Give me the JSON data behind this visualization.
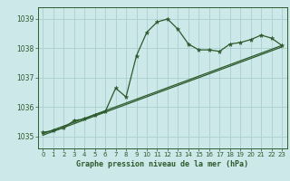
{
  "title": "Graphe pression niveau de la mer (hPa)",
  "background_color": "#cce8e8",
  "grid_color": "#aacfcf",
  "line_color": "#2d5a2d",
  "xlim": [
    -0.5,
    23.5
  ],
  "ylim": [
    1034.6,
    1039.4
  ],
  "yticks": [
    1035,
    1036,
    1037,
    1038,
    1039
  ],
  "xticks": [
    0,
    1,
    2,
    3,
    4,
    5,
    6,
    7,
    8,
    9,
    10,
    11,
    12,
    13,
    14,
    15,
    16,
    17,
    18,
    19,
    20,
    21,
    22,
    23
  ],
  "series1_x": [
    0,
    1,
    2,
    3,
    4,
    5,
    6,
    7,
    8,
    9,
    10,
    11,
    12,
    13,
    14,
    15,
    16,
    17,
    18,
    19,
    20,
    21,
    22,
    23
  ],
  "series1_y": [
    1035.15,
    1035.2,
    1035.3,
    1035.55,
    1035.6,
    1035.75,
    1035.85,
    1036.65,
    1036.35,
    1037.75,
    1038.55,
    1038.9,
    1039.0,
    1038.65,
    1038.15,
    1037.95,
    1037.95,
    1037.9,
    1038.15,
    1038.2,
    1038.3,
    1038.45,
    1038.35,
    1038.1
  ],
  "series2_x": [
    0,
    23
  ],
  "series2_y": [
    1035.1,
    1038.1
  ],
  "series3_x": [
    0,
    23
  ],
  "series3_y": [
    1035.05,
    1038.05
  ]
}
